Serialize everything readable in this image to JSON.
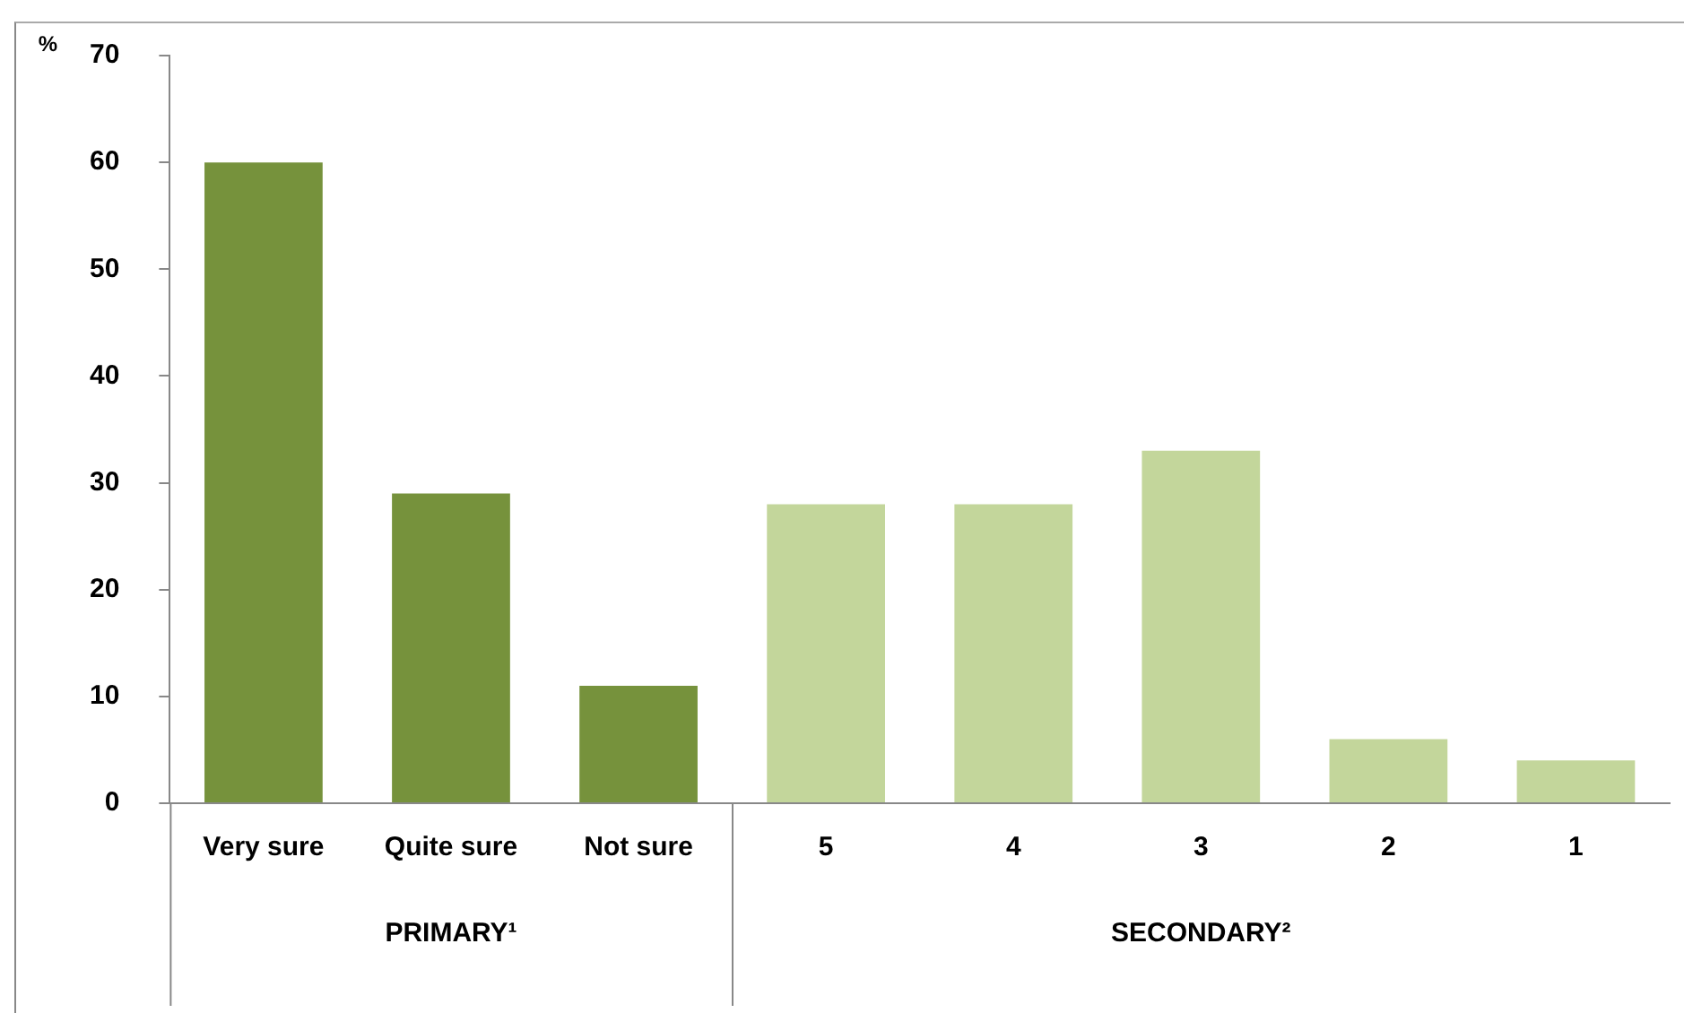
{
  "chart_data": {
    "type": "bar",
    "ylabel": "%",
    "categories": [
      "Very sure",
      "Quite sure",
      "Not sure",
      "5",
      "4",
      "3",
      "2",
      "1"
    ],
    "values": [
      60,
      29,
      11,
      28,
      28,
      33,
      6,
      4
    ],
    "colors": [
      "#76923c",
      "#76923c",
      "#76923c",
      "#c3d69b",
      "#c3d69b",
      "#c3d69b",
      "#c3d69b",
      "#c3d69b"
    ],
    "ylim": [
      0,
      70
    ],
    "yticks": [
      0,
      10,
      20,
      30,
      40,
      50,
      60,
      70
    ],
    "grid": false,
    "legend": false,
    "annotations": [
      "PRIMARY¹",
      "SECONDARY²"
    ]
  }
}
